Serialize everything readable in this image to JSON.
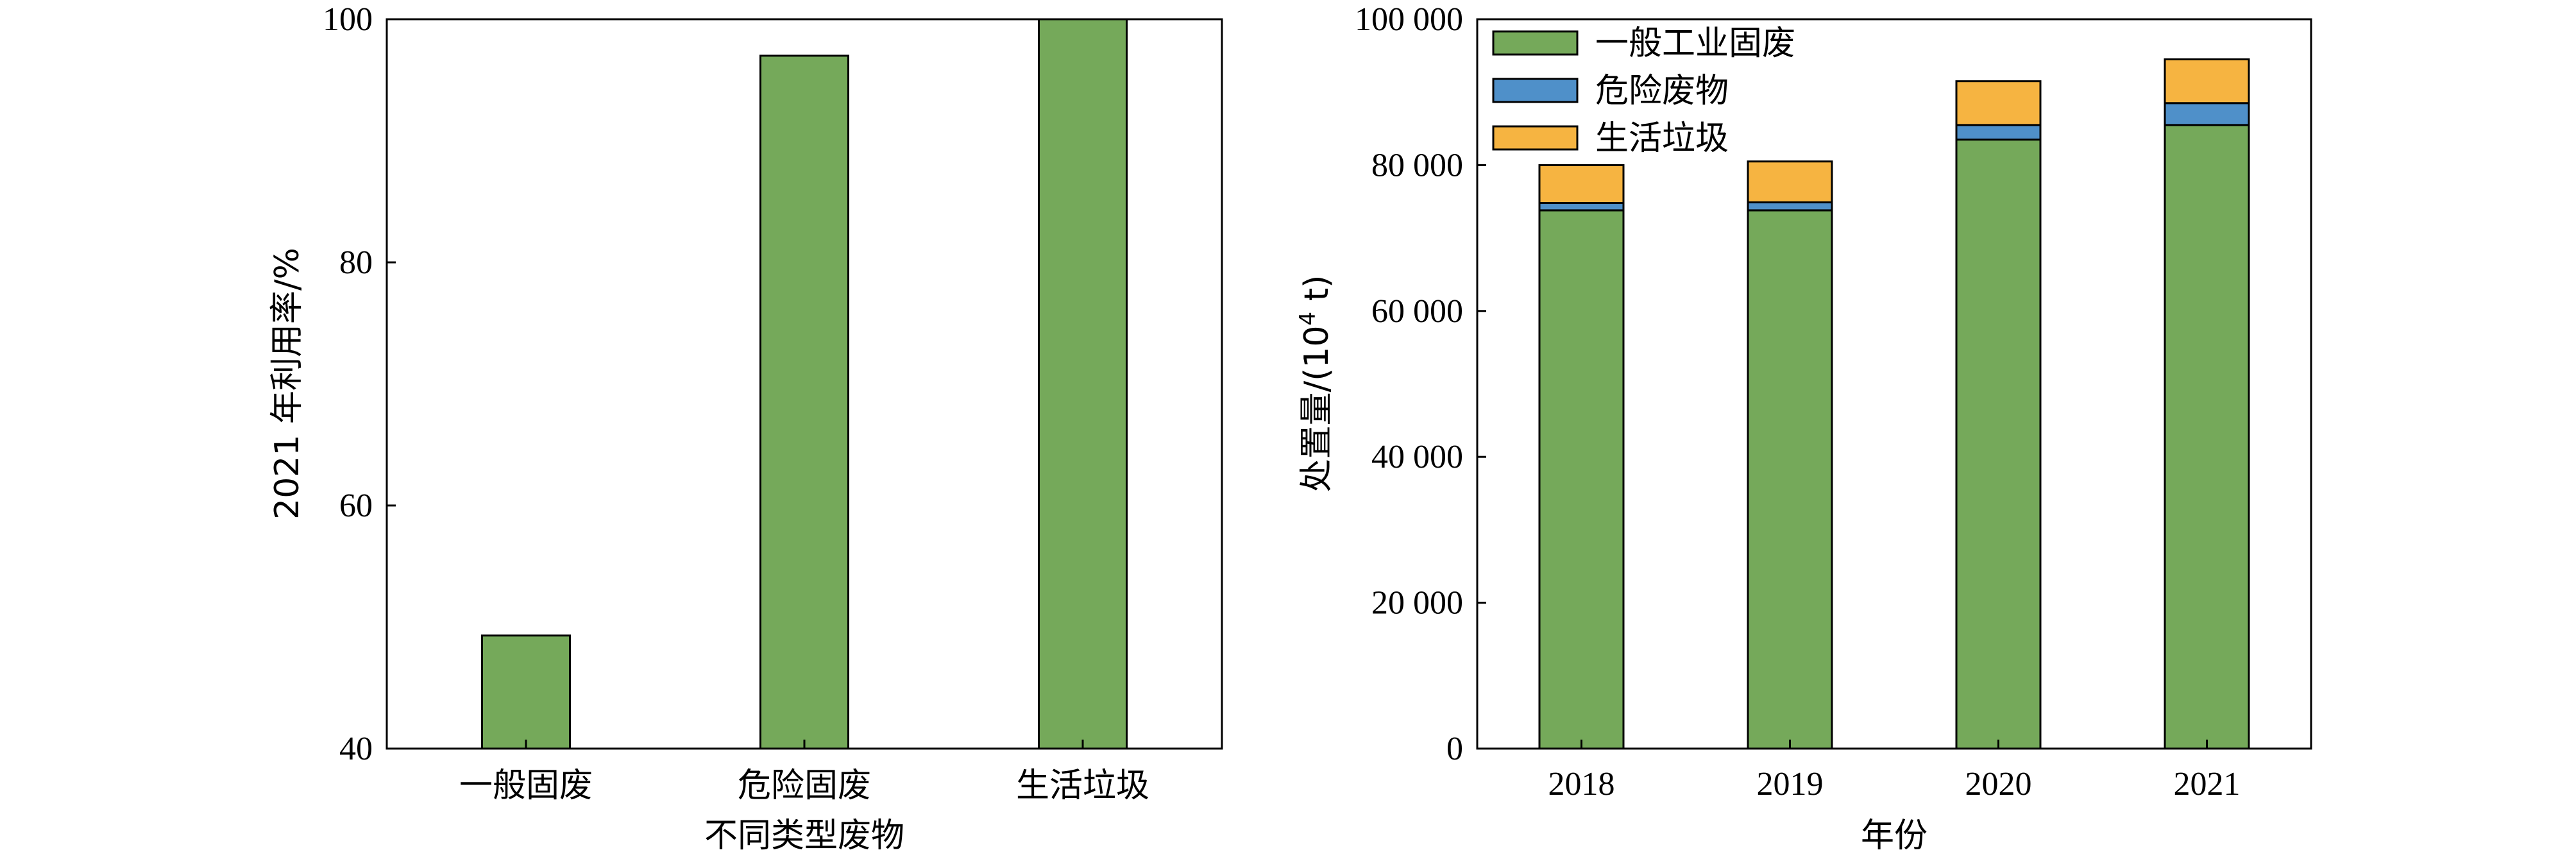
{
  "chart_data": [
    {
      "type": "bar",
      "categories": [
        "一般固废",
        "危险固废",
        "生活垃圾"
      ],
      "values": [
        49.3,
        97.0,
        100.0
      ],
      "xlabel": "不同类型废物",
      "ylabel": "2021 年利用率/%",
      "ylim": [
        40,
        100
      ],
      "yticks": [
        "40",
        "60",
        "80",
        "100"
      ],
      "grid": false,
      "colors": {
        "bar": "#75A95A"
      }
    },
    {
      "type": "bar",
      "stacked": true,
      "categories": [
        "2018",
        "2019",
        "2020",
        "2021"
      ],
      "series": [
        {
          "name": "一般工业固废",
          "color": "#75A95A",
          "values": [
            73800,
            73800,
            83500,
            85500
          ]
        },
        {
          "name": "危险废物",
          "color": "#4F90C9",
          "values": [
            1000,
            1100,
            2000,
            3000
          ]
        },
        {
          "name": "生活垃圾",
          "color": "#F6B441",
          "values": [
            5200,
            5600,
            6000,
            6000
          ]
        }
      ],
      "xlabel": "年份",
      "ylabel_main": "处置量/(10",
      "ylabel_sup": "4",
      "ylabel_end": " t)",
      "ylim": [
        0,
        100000
      ],
      "yticks": [
        "0",
        "20 000",
        "40 000",
        "60 000",
        "80 000",
        "100 000"
      ],
      "legend": "top-left",
      "grid": false
    }
  ]
}
